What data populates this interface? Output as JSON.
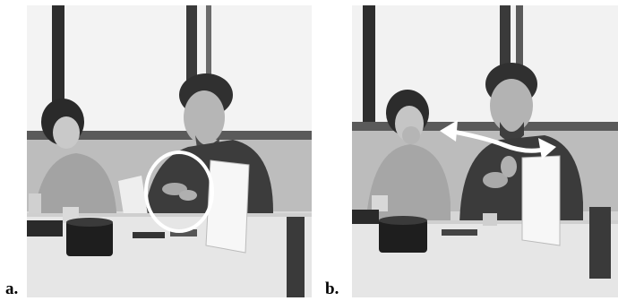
{
  "panels": [
    {
      "id": "a",
      "label": "a",
      "annotation": "ellipse"
    },
    {
      "id": "b",
      "label": "b",
      "annotation": "double-arrow"
    }
  ],
  "colors": {
    "window": "#f2f2f2",
    "frame": "#2b2b2b",
    "table": "#e8e8e8",
    "shirt_man": "#3a3a3a",
    "shirt_woman": "#9a9a9a",
    "annotation": "#ffffff"
  }
}
